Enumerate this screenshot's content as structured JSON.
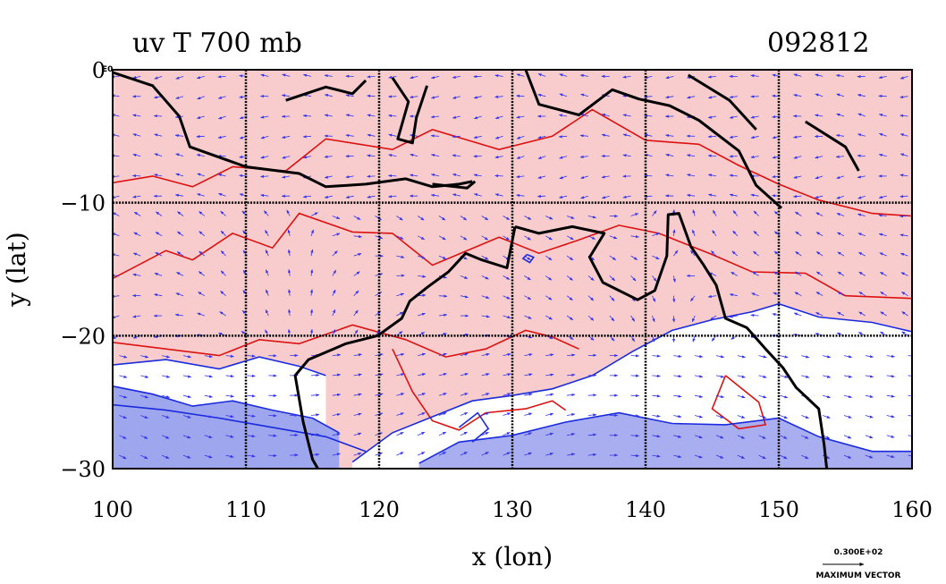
{
  "chart_data": {
    "type": "map-vector-contour",
    "title": "uv T 700 mb",
    "date_label": "092812",
    "xlabel": "x (lon)",
    "ylabel": "y (lat)",
    "xlim": [
      100,
      160
    ],
    "ylim": [
      -30,
      0
    ],
    "x_ticks": [
      "100",
      "110",
      "120",
      "130",
      "140",
      "150",
      "160"
    ],
    "y_ticks": [
      "0",
      "−10",
      "−20",
      "−30"
    ],
    "y_top_suffix": "E0",
    "grid": true,
    "legend": {
      "value_label": "0.300E+02",
      "caption": "MAXIMUM VECTOR"
    },
    "warm_contours": [
      [
        [
          100,
          -8.5
        ],
        [
          103,
          -8
        ],
        [
          106,
          -8.8
        ],
        [
          109,
          -7.3
        ],
        [
          113,
          -7.6
        ],
        [
          116,
          -5.2
        ],
        [
          121,
          -6
        ],
        [
          124,
          -4.5
        ],
        [
          129,
          -6
        ],
        [
          133,
          -5
        ],
        [
          136,
          -3
        ],
        [
          140,
          -5.3
        ],
        [
          144,
          -5.6
        ],
        [
          147,
          -7.2
        ],
        [
          150,
          -8.6
        ],
        [
          153,
          -9.8
        ],
        [
          157,
          -10.8
        ],
        [
          160,
          -11
        ]
      ],
      [
        [
          100,
          -15.7
        ],
        [
          104,
          -13.6
        ],
        [
          106,
          -14.3
        ],
        [
          109,
          -12.3
        ],
        [
          112,
          -13.4
        ],
        [
          114,
          -10.8
        ],
        [
          118,
          -12.2
        ],
        [
          121,
          -12.3
        ],
        [
          124,
          -14.7
        ],
        [
          129,
          -12.6
        ],
        [
          132,
          -13.8
        ],
        [
          135,
          -12.8
        ],
        [
          138,
          -11.7
        ],
        [
          141,
          -12.3
        ],
        [
          145,
          -13.9
        ],
        [
          148,
          -15.2
        ],
        [
          152,
          -15.3
        ],
        [
          155,
          -17
        ],
        [
          160,
          -17.2
        ]
      ],
      [
        [
          100,
          -20.5
        ],
        [
          104,
          -21
        ],
        [
          108,
          -21.5
        ],
        [
          111,
          -20.3
        ],
        [
          114,
          -20.6
        ],
        [
          118,
          -19.2
        ],
        [
          122,
          -20.3
        ],
        [
          125,
          -21.6
        ],
        [
          128,
          -21
        ],
        [
          131,
          -19.6
        ],
        [
          133,
          -20.1
        ],
        [
          135,
          -21
        ]
      ],
      [
        [
          121,
          -21
        ],
        [
          122.5,
          -24.2
        ],
        [
          124,
          -26.4
        ],
        [
          126,
          -27.1
        ],
        [
          128,
          -25.8
        ],
        [
          131,
          -25.5
        ],
        [
          133,
          -24.9
        ],
        [
          134,
          -25.6
        ]
      ],
      [
        [
          146,
          -23
        ],
        [
          148.5,
          -25
        ],
        [
          149,
          -26.7
        ],
        [
          147,
          -27
        ],
        [
          145,
          -25.5
        ],
        [
          146,
          -23
        ]
      ]
    ],
    "cool_contours": [
      [
        [
          100,
          -22.2
        ],
        [
          104,
          -21.8
        ],
        [
          108,
          -22.5
        ],
        [
          111,
          -21.6
        ],
        [
          114,
          -22.3
        ],
        [
          116,
          -23
        ]
      ],
      [
        [
          100,
          -23.8
        ],
        [
          103,
          -24.4
        ],
        [
          106,
          -25.3
        ],
        [
          109,
          -24.9
        ],
        [
          112,
          -25.6
        ],
        [
          115,
          -26.2
        ],
        [
          117,
          -27.3
        ]
      ],
      [
        [
          100,
          -25.2
        ],
        [
          104,
          -25.6
        ],
        [
          108,
          -26.2
        ],
        [
          112,
          -26.9
        ],
        [
          116,
          -27.6
        ],
        [
          119,
          -28.7
        ]
      ],
      [
        [
          118,
          -29.5
        ],
        [
          121,
          -27.3
        ],
        [
          124,
          -26.1
        ],
        [
          127,
          -24.9
        ],
        [
          130,
          -24.5
        ],
        [
          133,
          -24
        ],
        [
          136,
          -23
        ],
        [
          139,
          -21.2
        ],
        [
          142,
          -19.6
        ],
        [
          145,
          -18.8
        ],
        [
          148,
          -18.2
        ],
        [
          150,
          -17.6
        ],
        [
          153,
          -18.6
        ],
        [
          157,
          -19
        ],
        [
          160,
          -19.7
        ]
      ],
      [
        [
          123,
          -29.6
        ],
        [
          126,
          -28
        ],
        [
          130,
          -27.5
        ],
        [
          134,
          -26.5
        ],
        [
          138,
          -25.8
        ],
        [
          142,
          -26.6
        ],
        [
          146,
          -26.7
        ],
        [
          150,
          -26.2
        ],
        [
          153,
          -27.6
        ],
        [
          157,
          -28.7
        ],
        [
          160,
          -28.7
        ]
      ],
      [
        [
          126,
          -26.9
        ],
        [
          127.4,
          -25.8
        ],
        [
          128.2,
          -27
        ],
        [
          127,
          -28
        ]
      ],
      [
        [
          131.1,
          -13.9
        ],
        [
          131.6,
          -14.1
        ],
        [
          131.3,
          -14.5
        ],
        [
          130.8,
          -14.2
        ],
        [
          131.1,
          -13.9
        ]
      ]
    ],
    "coastlines": [
      [
        [
          100,
          -0.2
        ],
        [
          103,
          -1.2
        ],
        [
          105,
          -3.5
        ],
        [
          105.8,
          -5.8
        ],
        [
          110,
          -7.3
        ],
        [
          114,
          -7.8
        ],
        [
          116,
          -8.8
        ],
        [
          119,
          -8.6
        ],
        [
          122,
          -8.2
        ],
        [
          124,
          -8.8
        ],
        [
          126,
          -8.6
        ],
        [
          127,
          -8.4
        ]
      ],
      [
        [
          113,
          -2.3
        ],
        [
          116,
          -1.3
        ],
        [
          118,
          -1.8
        ],
        [
          119,
          -0.8
        ]
      ],
      [
        [
          121,
          -0.6
        ],
        [
          122.2,
          -2.4
        ],
        [
          121.4,
          -5.2
        ],
        [
          122.5,
          -5.5
        ],
        [
          122.8,
          -3.6
        ],
        [
          123.6,
          -1.2
        ]
      ],
      [
        [
          124,
          -8.6
        ],
        [
          126.6,
          -8.9
        ],
        [
          127.2,
          -8.4
        ]
      ],
      [
        [
          131,
          0
        ],
        [
          132,
          -2.6
        ],
        [
          135,
          -3.4
        ],
        [
          137.5,
          -1.5
        ],
        [
          139.5,
          -2.2
        ],
        [
          141.8,
          -2.7
        ],
        [
          144,
          -3.8
        ],
        [
          147,
          -6.1
        ],
        [
          148.3,
          -8.7
        ],
        [
          150.2,
          -10.4
        ]
      ],
      [
        [
          143.2,
          -0.4
        ],
        [
          146.3,
          -2.3
        ],
        [
          148.3,
          -4.5
        ]
      ],
      [
        [
          152,
          -3.9
        ],
        [
          155,
          -5.8
        ],
        [
          156,
          -7.6
        ]
      ],
      [
        [
          130.2,
          -11.8
        ],
        [
          132,
          -12.3
        ],
        [
          134.5,
          -11.8
        ],
        [
          136.9,
          -12.3
        ],
        [
          135.8,
          -14.1
        ],
        [
          136.8,
          -16
        ],
        [
          139.4,
          -17.3
        ],
        [
          140.7,
          -16.6
        ],
        [
          141.6,
          -14
        ],
        [
          141.7,
          -10.9
        ],
        [
          142.5,
          -10.8
        ],
        [
          143.4,
          -13.3
        ],
        [
          144.3,
          -14.6
        ],
        [
          145.3,
          -16.2
        ],
        [
          146,
          -18.7
        ],
        [
          147.6,
          -19.4
        ],
        [
          149.1,
          -21.1
        ],
        [
          150.3,
          -22.4
        ],
        [
          151.3,
          -23.9
        ],
        [
          153,
          -25.5
        ],
        [
          153.4,
          -28.2
        ],
        [
          153.6,
          -30
        ]
      ],
      [
        [
          130.2,
          -11.8
        ],
        [
          129.6,
          -14.9
        ],
        [
          127.7,
          -14.3
        ],
        [
          126.5,
          -13.8
        ],
        [
          125.2,
          -15.2
        ],
        [
          123.7,
          -16.3
        ],
        [
          122.3,
          -17.4
        ],
        [
          121.7,
          -18.7
        ],
        [
          119.9,
          -20
        ],
        [
          117.5,
          -20.6
        ],
        [
          114.7,
          -21.8
        ],
        [
          113.7,
          -23
        ],
        [
          114.3,
          -26.5
        ],
        [
          115,
          -29.3
        ],
        [
          115.4,
          -30
        ]
      ]
    ]
  }
}
